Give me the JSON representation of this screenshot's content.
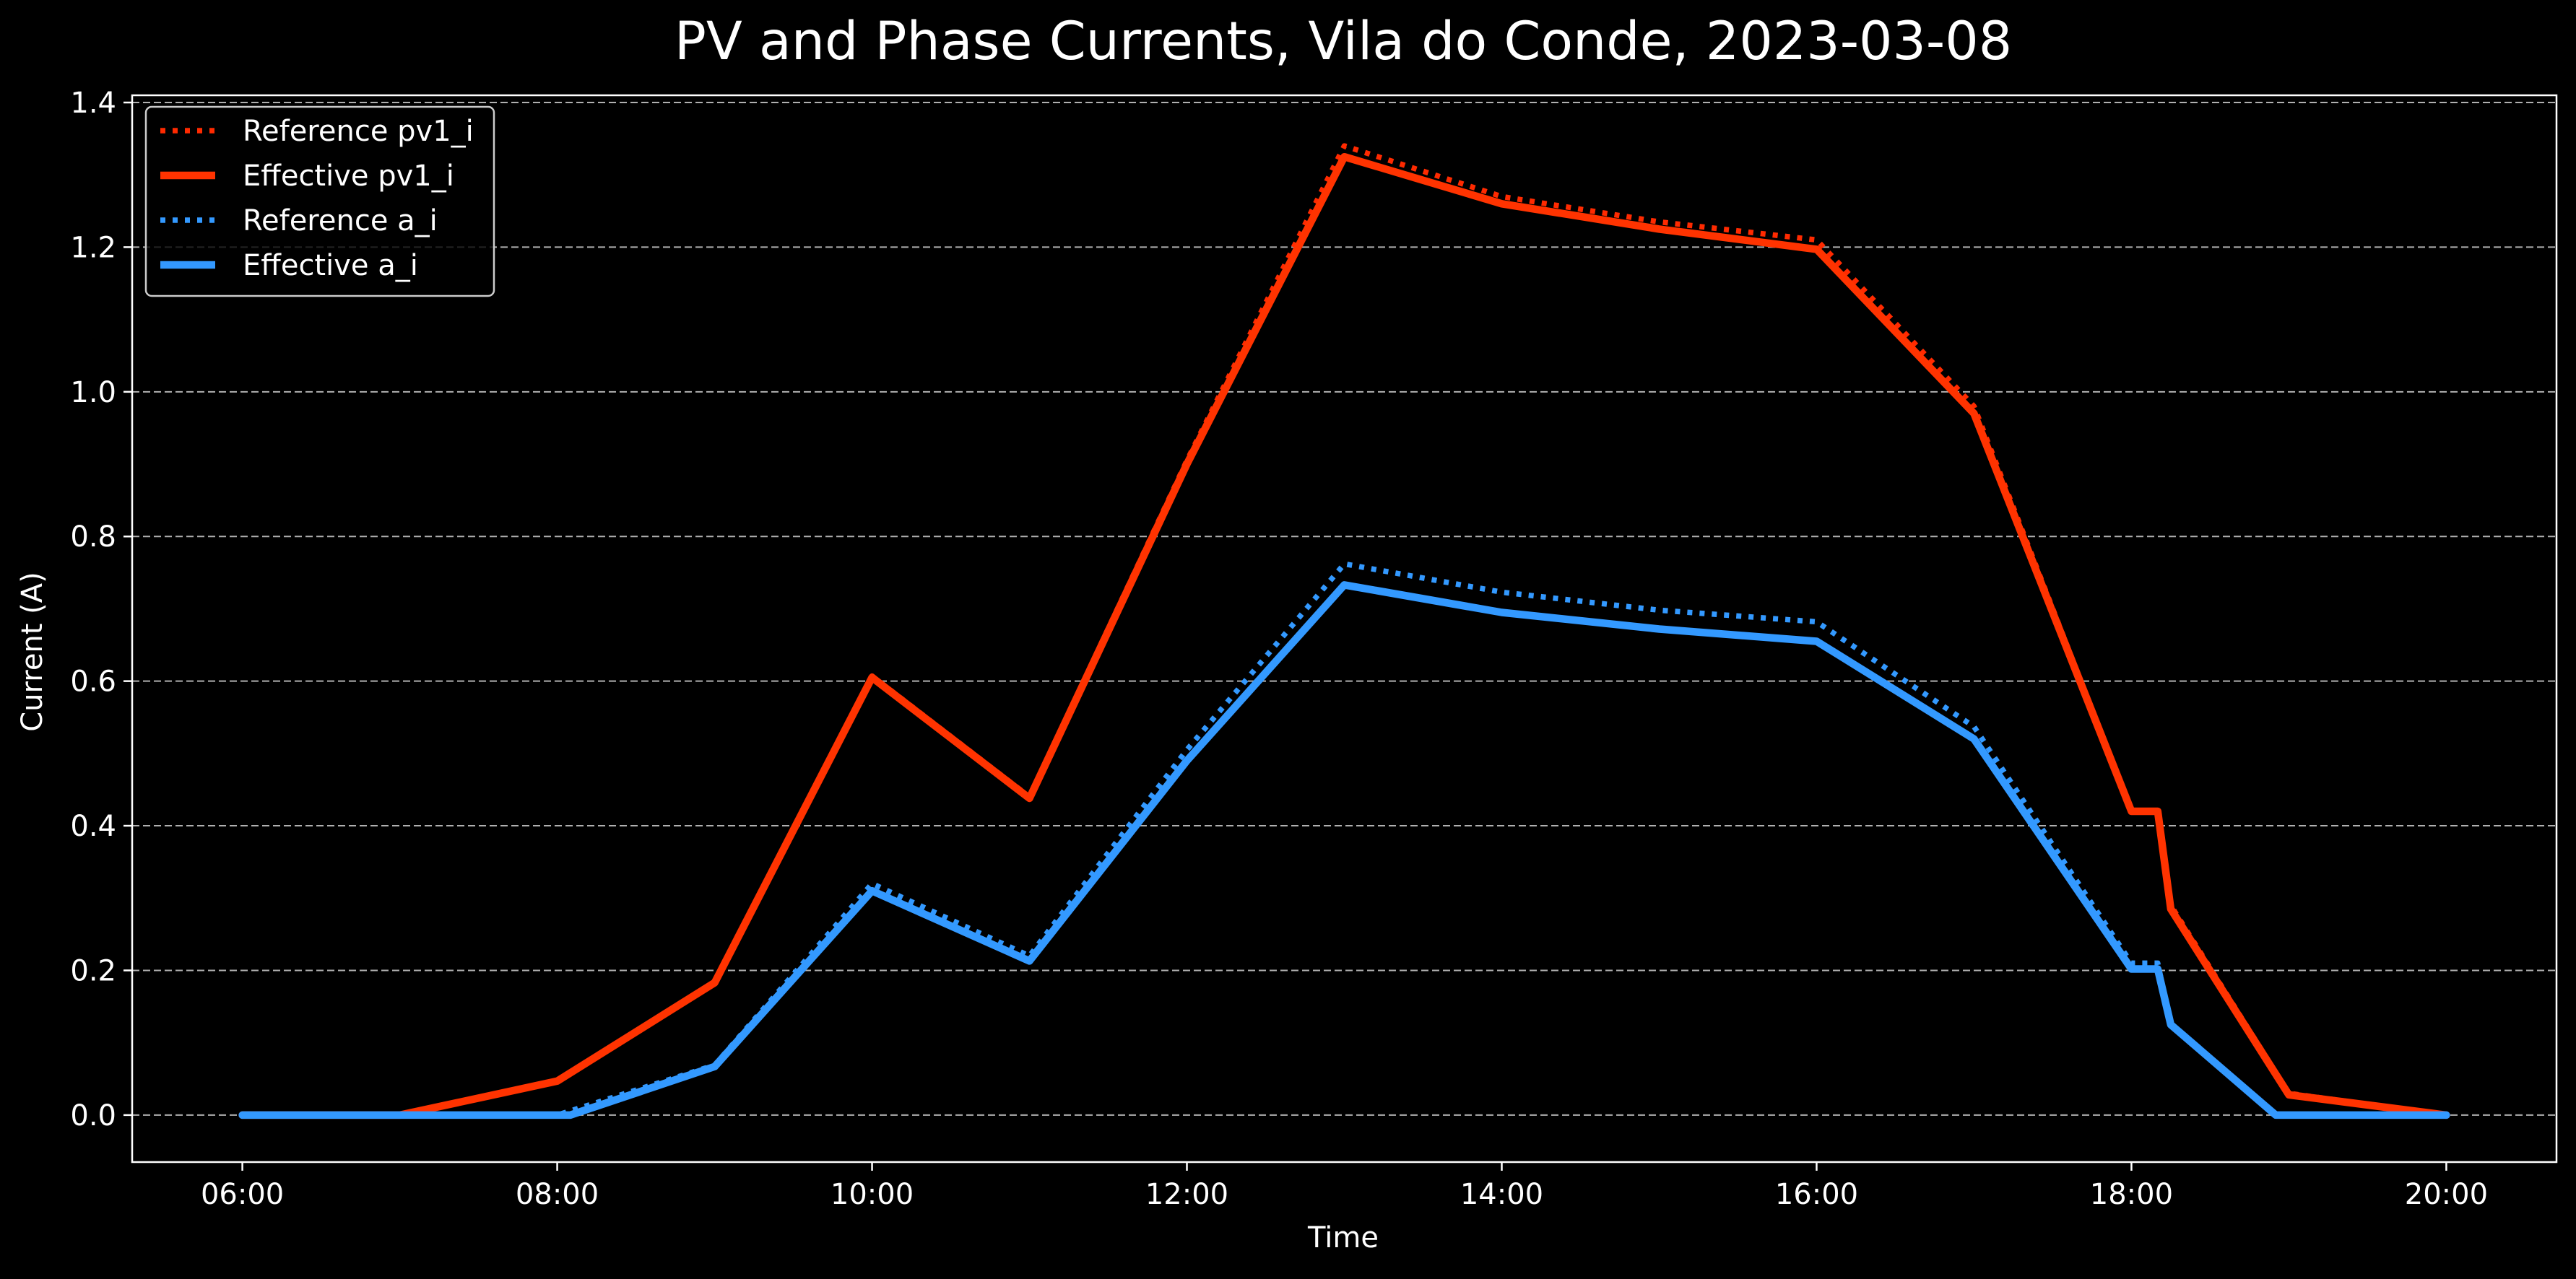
{
  "chart_data": {
    "type": "line",
    "title": "PV and Phase Currents, Vila do Conde, 2023-03-08",
    "xlabel": "Time",
    "ylabel": "Current (A)",
    "x_ticks": [
      "06:00",
      "08:00",
      "10:00",
      "12:00",
      "14:00",
      "16:00",
      "18:00",
      "20:00"
    ],
    "y_ticks": [
      "0.0",
      "0.2",
      "0.4",
      "0.6",
      "0.8",
      "1.0",
      "1.2",
      "1.4"
    ],
    "xlim": [
      "05:18",
      "20:42"
    ],
    "ylim": [
      -0.065,
      1.41
    ],
    "grid": "horizontal dashed",
    "legend_position": "upper-left",
    "background_color": "#000000",
    "series": [
      {
        "name": "Reference pv1_i",
        "color": "#ff2a00",
        "style": "dotted",
        "points": [
          [
            "06:00",
            0.0
          ],
          [
            "07:00",
            0.0
          ],
          [
            "08:00",
            0.047
          ],
          [
            "09:00",
            0.184
          ],
          [
            "10:00",
            0.607
          ],
          [
            "11:00",
            0.44
          ],
          [
            "12:00",
            0.905
          ],
          [
            "13:00",
            1.34
          ],
          [
            "14:00",
            1.27
          ],
          [
            "15:00",
            1.235
          ],
          [
            "16:00",
            1.21
          ],
          [
            "17:00",
            0.98
          ],
          [
            "18:00",
            0.42
          ],
          [
            "18:10",
            0.42
          ],
          [
            "18:15",
            0.29
          ],
          [
            "19:00",
            0.03
          ],
          [
            "20:00",
            0.0
          ]
        ]
      },
      {
        "name": "Effective pv1_i",
        "color": "#ff3300",
        "style": "solid",
        "points": [
          [
            "06:00",
            0.0
          ],
          [
            "07:00",
            0.0
          ],
          [
            "08:00",
            0.047
          ],
          [
            "09:00",
            0.183
          ],
          [
            "10:00",
            0.605
          ],
          [
            "11:00",
            0.438
          ],
          [
            "12:00",
            0.9
          ],
          [
            "13:00",
            1.325
          ],
          [
            "14:00",
            1.26
          ],
          [
            "15:00",
            1.225
          ],
          [
            "16:00",
            1.197
          ],
          [
            "17:00",
            0.97
          ],
          [
            "18:00",
            0.42
          ],
          [
            "18:10",
            0.42
          ],
          [
            "18:15",
            0.285
          ],
          [
            "19:00",
            0.028
          ],
          [
            "20:00",
            0.0
          ]
        ]
      },
      {
        "name": "Reference a_i",
        "color": "#3399ff",
        "style": "dotted",
        "points": [
          [
            "06:00",
            0.0
          ],
          [
            "07:00",
            0.0
          ],
          [
            "08:00",
            0.0
          ],
          [
            "09:00",
            0.069
          ],
          [
            "10:00",
            0.32
          ],
          [
            "11:00",
            0.22
          ],
          [
            "12:00",
            0.505
          ],
          [
            "13:00",
            0.762
          ],
          [
            "14:00",
            0.723
          ],
          [
            "15:00",
            0.698
          ],
          [
            "16:00",
            0.682
          ],
          [
            "17:00",
            0.537
          ],
          [
            "18:00",
            0.21
          ],
          [
            "18:10",
            0.21
          ],
          [
            "18:15",
            0.125
          ],
          [
            "18:55",
            0.0
          ],
          [
            "20:00",
            0.0
          ]
        ]
      },
      {
        "name": "Effective a_i",
        "color": "#3399ff",
        "style": "solid",
        "points": [
          [
            "06:00",
            0.0
          ],
          [
            "07:00",
            0.0
          ],
          [
            "08:05",
            0.0
          ],
          [
            "09:00",
            0.067
          ],
          [
            "10:00",
            0.31
          ],
          [
            "11:00",
            0.213
          ],
          [
            "12:00",
            0.49
          ],
          [
            "13:00",
            0.733
          ],
          [
            "14:00",
            0.695
          ],
          [
            "15:00",
            0.672
          ],
          [
            "16:00",
            0.655
          ],
          [
            "17:00",
            0.52
          ],
          [
            "18:00",
            0.202
          ],
          [
            "18:10",
            0.202
          ],
          [
            "18:15",
            0.125
          ],
          [
            "18:55",
            0.0
          ],
          [
            "20:00",
            0.0
          ]
        ]
      }
    ]
  }
}
